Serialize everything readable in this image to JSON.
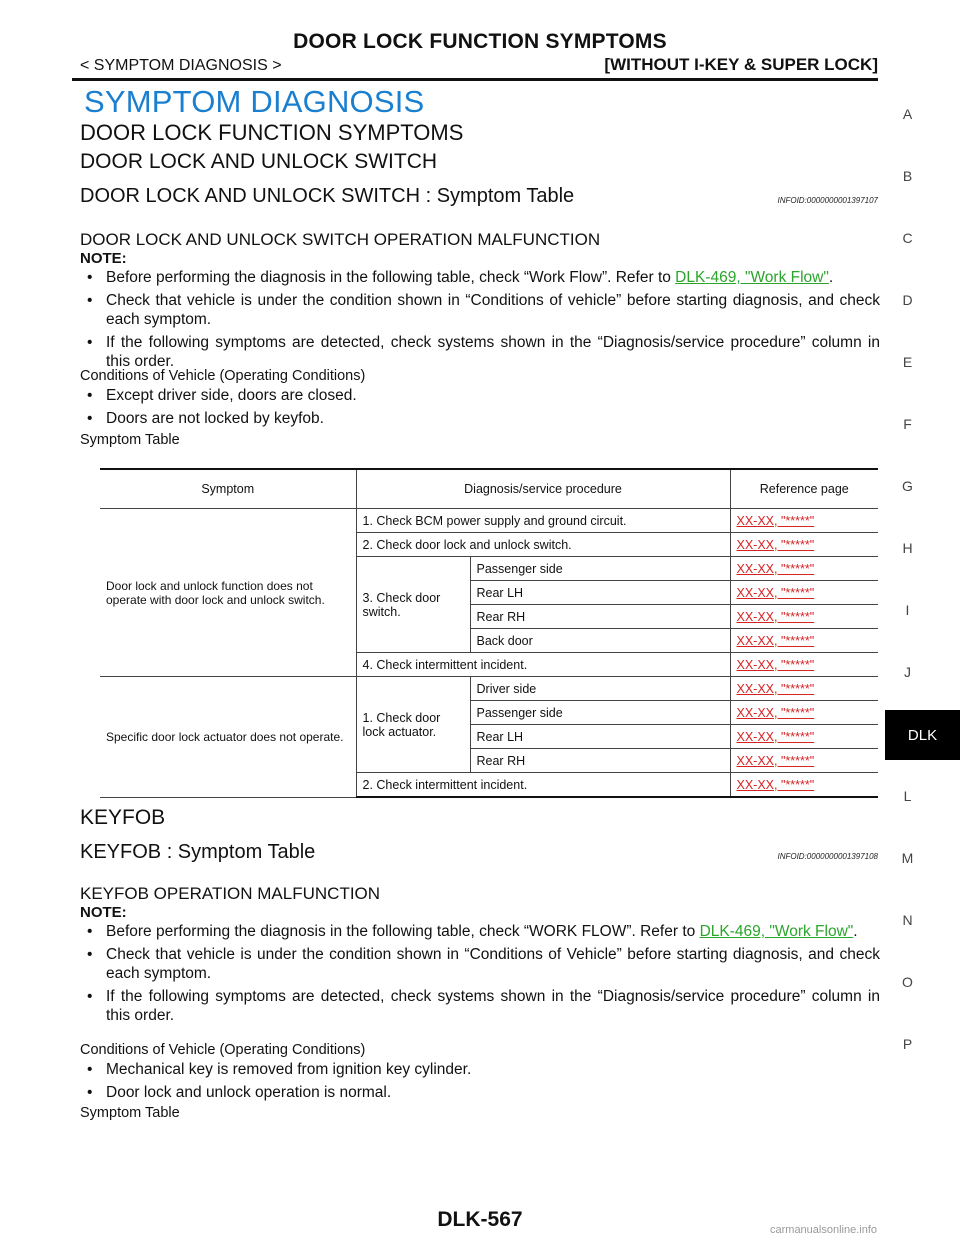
{
  "header": {
    "title": "DOOR LOCK FUNCTION SYMPTOMS",
    "section": "< SYMPTOM DIAGNOSIS >",
    "variant": "[WITHOUT I-KEY & SUPER LOCK]"
  },
  "main_title": "SYMPTOM DIAGNOSIS",
  "chapter_title": "DOOR LOCK FUNCTION SYMPTOMS",
  "section1": {
    "heading": "DOOR LOCK AND UNLOCK SWITCH",
    "sub_heading": "DOOR LOCK AND UNLOCK SWITCH : Symptom Table",
    "info_id": "INFOID:0000000001397107",
    "malfunction_title": "DOOR LOCK AND UNLOCK SWITCH OPERATION MALFUNCTION",
    "note_label": "NOTE:",
    "notes": {
      "n1_text": "Before performing the diagnosis in the following table, check “Work Flow”. Refer to ",
      "n1_link": "DLK-469, \"Work Flow\"",
      "n1_end": ".",
      "n2": "Check that vehicle is under the condition shown in “Conditions of vehicle” before starting diagnosis, and check each symptom.",
      "n3": "If the following symptoms are detected, check systems shown in the “Diagnosis/service procedure” column in this order."
    },
    "conditions_title": "Conditions of Vehicle (Operating Conditions)",
    "conditions": {
      "c1": "Except driver side, doors are closed.",
      "c2": "Doors are not locked by keyfob."
    },
    "table_title": "Symptom Table"
  },
  "table": {
    "headers": {
      "symptom": "Symptom",
      "procedure": "Diagnosis/service procedure",
      "reference": "Reference page"
    },
    "ref": "XX-XX, \"*****\"",
    "symptom1": "Door lock and unlock function does not operate with door lock and unlock switch.",
    "s1_steps": {
      "p1": "1. Check BCM power supply and ground circuit.",
      "p2": "2. Check door lock and unlock switch.",
      "p3": "3. Check door switch.",
      "p4": "4. Check intermittent incident."
    },
    "s1_door_switch": {
      "d1": "Passenger side",
      "d2": "Rear LH",
      "d3": "Rear RH",
      "d4": "Back door"
    },
    "symptom2": "Specific door lock actuator does not operate.",
    "s2_steps": {
      "p1": "1. Check door lock actuator.",
      "p2": "2. Check intermittent incident."
    },
    "s2_actuator": {
      "d1": "Driver side",
      "d2": "Passenger side",
      "d3": "Rear LH",
      "d4": "Rear RH"
    }
  },
  "section2": {
    "heading": "KEYFOB",
    "sub_heading": "KEYFOB : Symptom Table",
    "info_id": "INFOID:0000000001397108",
    "malfunction_title": "KEYFOB OPERATION MALFUNCTION",
    "note_label": "NOTE:",
    "notes": {
      "n1_text": "Before performing the diagnosis in the following table, check “WORK FLOW”. Refer to ",
      "n1_link": "DLK-469, \"Work Flow\"",
      "n1_end": ".",
      "n2": "Check that vehicle is under the condition shown in “Conditions of Vehicle” before starting diagnosis, and check each symptom.",
      "n3": "If the following symptoms are detected, check systems shown in the “Diagnosis/service procedure” column in this order."
    },
    "conditions_title": "Conditions of Vehicle (Operating Conditions)",
    "conditions": {
      "c1": "Mechanical key is removed from ignition key cylinder.",
      "c2": "Door lock and unlock operation is normal."
    },
    "table_title": "Symptom Table"
  },
  "side_index": {
    "a": "A",
    "b": "B",
    "c": "C",
    "d": "D",
    "e": "E",
    "f": "F",
    "g": "G",
    "h": "H",
    "i": "I",
    "j": "J",
    "dlk": "DLK",
    "l": "L",
    "m": "M",
    "n": "N",
    "o": "O",
    "p": "P"
  },
  "page_number": "DLK-567",
  "watermark": "carmanualsonline.info"
}
